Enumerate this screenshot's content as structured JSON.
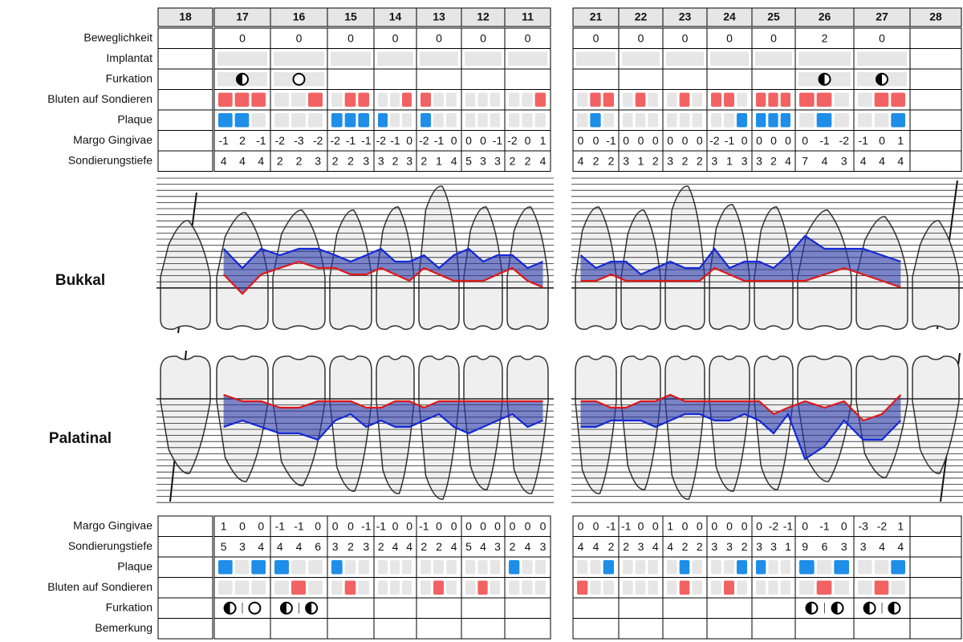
{
  "teeth": [
    "18",
    "17",
    "16",
    "15",
    "14",
    "13",
    "12",
    "11",
    "21",
    "22",
    "23",
    "24",
    "25",
    "26",
    "27",
    "28"
  ],
  "sides": {
    "buccal": "Bukkal",
    "palatal": "Palatinal"
  },
  "colors": {
    "bleeding": "#f26262",
    "plaque": "#1e8ee8",
    "empty": "#e6e6e6",
    "highlight": "#e02424",
    "margin_line": "#e01818",
    "depth_line": "#1428d8",
    "depth_fill": "#2a3aa8"
  },
  "highlight_from": 4,
  "top_labels": {
    "mobility": "Beweglichkeit",
    "implant": "Implantat",
    "furcation": "Furkation",
    "bleeding": "Bluten auf Sondieren",
    "plaque": "Plaque",
    "margin": "Margo Gingivae",
    "depth": "Sondierungstiefe"
  },
  "top": {
    "mobility": [
      null,
      0,
      0,
      0,
      0,
      0,
      0,
      0,
      0,
      0,
      0,
      0,
      0,
      2,
      0,
      null
    ],
    "implant": [
      false,
      true,
      true,
      true,
      true,
      true,
      true,
      true,
      true,
      true,
      true,
      true,
      true,
      true,
      true,
      false
    ],
    "furcation": [
      null,
      "half",
      "open",
      null,
      null,
      null,
      null,
      null,
      null,
      null,
      null,
      null,
      null,
      "half",
      "half",
      null
    ],
    "bleeding": [
      null,
      [
        1,
        1,
        1
      ],
      [
        0,
        0,
        1
      ],
      [
        0,
        1,
        1
      ],
      [
        0,
        0,
        1
      ],
      [
        1,
        0,
        0
      ],
      [
        0,
        0,
        0
      ],
      [
        0,
        0,
        1
      ],
      [
        0,
        1,
        1
      ],
      [
        0,
        1,
        0
      ],
      [
        0,
        1,
        0
      ],
      [
        1,
        1,
        0
      ],
      [
        1,
        1,
        1
      ],
      [
        1,
        1,
        0
      ],
      [
        0,
        1,
        1
      ],
      null
    ],
    "plaque": [
      null,
      [
        1,
        1,
        0
      ],
      [
        0,
        0,
        0
      ],
      [
        1,
        1,
        1
      ],
      [
        1,
        0,
        0
      ],
      [
        1,
        0,
        0
      ],
      [
        0,
        0,
        0
      ],
      [
        0,
        0,
        0
      ],
      [
        0,
        1,
        0
      ],
      [
        0,
        0,
        0
      ],
      [
        0,
        0,
        0
      ],
      [
        0,
        0,
        1
      ],
      [
        1,
        1,
        1
      ],
      [
        0,
        1,
        0
      ],
      [
        0,
        0,
        1
      ],
      null
    ],
    "margin": [
      null,
      [
        -1,
        2,
        -1
      ],
      [
        -2,
        -3,
        -2
      ],
      [
        -2,
        -1,
        -1
      ],
      [
        -2,
        -1,
        0
      ],
      [
        -2,
        -1,
        0
      ],
      [
        0,
        0,
        -1
      ],
      [
        -2,
        0,
        1
      ],
      [
        0,
        0,
        -1
      ],
      [
        0,
        0,
        0
      ],
      [
        0,
        0,
        0
      ],
      [
        -2,
        -1,
        0
      ],
      [
        0,
        0,
        0
      ],
      [
        0,
        -1,
        -2
      ],
      [
        -1,
        0,
        1
      ],
      null
    ],
    "depth": [
      null,
      [
        4,
        4,
        4
      ],
      [
        2,
        2,
        3
      ],
      [
        2,
        2,
        3
      ],
      [
        3,
        2,
        3
      ],
      [
        2,
        1,
        4
      ],
      [
        5,
        3,
        3
      ],
      [
        2,
        2,
        4
      ],
      [
        4,
        2,
        2
      ],
      [
        3,
        1,
        2
      ],
      [
        3,
        2,
        2
      ],
      [
        3,
        1,
        3
      ],
      [
        3,
        2,
        4
      ],
      [
        7,
        4,
        3
      ],
      [
        4,
        4,
        4
      ],
      null
    ]
  },
  "bottom_labels": {
    "margin": "Margo Gingivae",
    "depth": "Sondierungstiefe",
    "plaque": "Plaque",
    "bleeding": "Bluten auf Sondieren",
    "furcation": "Furkation",
    "remark": "Bemerkung"
  },
  "bottom": {
    "margin": [
      null,
      [
        1,
        0,
        0
      ],
      [
        -1,
        -1,
        0
      ],
      [
        0,
        0,
        -1
      ],
      [
        -1,
        0,
        0
      ],
      [
        -1,
        0,
        0
      ],
      [
        0,
        0,
        0
      ],
      [
        0,
        0,
        0
      ],
      [
        0,
        0,
        -1
      ],
      [
        -1,
        0,
        0
      ],
      [
        1,
        0,
        0
      ],
      [
        0,
        0,
        0
      ],
      [
        0,
        -2,
        -1
      ],
      [
        0,
        -1,
        0
      ],
      [
        -3,
        -2,
        1
      ],
      null
    ],
    "depth": [
      null,
      [
        5,
        3,
        4
      ],
      [
        4,
        4,
        6
      ],
      [
        3,
        2,
        3
      ],
      [
        2,
        4,
        4
      ],
      [
        2,
        2,
        4
      ],
      [
        5,
        4,
        3
      ],
      [
        2,
        4,
        3
      ],
      [
        4,
        4,
        2
      ],
      [
        2,
        3,
        4
      ],
      [
        4,
        2,
        2
      ],
      [
        3,
        3,
        2
      ],
      [
        3,
        3,
        1
      ],
      [
        9,
        6,
        3
      ],
      [
        3,
        4,
        4
      ],
      null
    ],
    "plaque": [
      null,
      [
        1,
        0,
        1
      ],
      [
        1,
        0,
        0
      ],
      [
        1,
        0,
        0
      ],
      [
        0,
        0,
        0
      ],
      [
        0,
        0,
        0
      ],
      [
        0,
        0,
        0
      ],
      [
        1,
        0,
        0
      ],
      [
        0,
        0,
        1
      ],
      [
        0,
        0,
        0
      ],
      [
        0,
        1,
        0
      ],
      [
        0,
        0,
        1
      ],
      [
        1,
        0,
        0
      ],
      [
        1,
        0,
        1
      ],
      [
        0,
        0,
        1
      ],
      null
    ],
    "bleeding": [
      null,
      [
        0,
        0,
        0
      ],
      [
        0,
        1,
        0
      ],
      [
        0,
        1,
        0
      ],
      [
        0,
        0,
        0
      ],
      [
        0,
        1,
        0
      ],
      [
        0,
        1,
        0
      ],
      [
        0,
        0,
        0
      ],
      [
        1,
        0,
        0
      ],
      [
        0,
        0,
        0
      ],
      [
        0,
        1,
        0
      ],
      [
        0,
        1,
        0
      ],
      [
        0,
        0,
        0
      ],
      [
        0,
        1,
        0
      ],
      [
        0,
        1,
        0
      ],
      null
    ],
    "furcation": [
      null,
      [
        "half",
        "open"
      ],
      [
        "half",
        "half"
      ],
      null,
      null,
      null,
      null,
      null,
      null,
      null,
      null,
      null,
      null,
      [
        "half",
        "half"
      ],
      [
        "half",
        "half"
      ],
      null
    ]
  }
}
